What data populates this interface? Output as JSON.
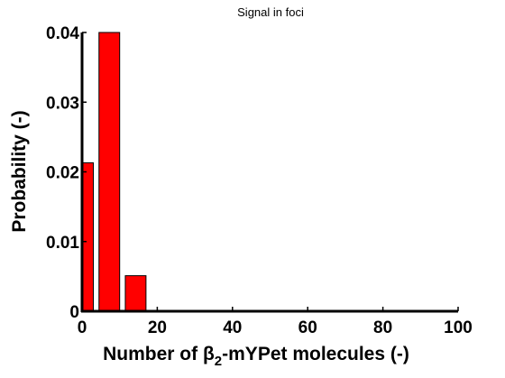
{
  "chart_data": {
    "type": "bar",
    "title": "Signal in foci",
    "xlabel": {
      "prefix": "Number of ",
      "symbol": "β",
      "subscript": "2",
      "suffix": "-mYPet molecules (-)"
    },
    "ylabel": "Probability (-)",
    "xlim": [
      0,
      100
    ],
    "ylim": [
      0,
      0.04
    ],
    "x_ticks": [
      "0",
      "20",
      "40",
      "60",
      "80",
      "100"
    ],
    "y_ticks": [
      "0",
      "0.01",
      "0.02",
      "0.03",
      "0.04"
    ],
    "bar_color": "#ff0000",
    "bars": [
      {
        "x_start": 0,
        "x_end": 3,
        "value": 0.0213
      },
      {
        "x_start": 4.5,
        "x_end": 10,
        "value": 0.04
      },
      {
        "x_start": 11.5,
        "x_end": 17,
        "value": 0.0051
      }
    ],
    "grid": false
  }
}
